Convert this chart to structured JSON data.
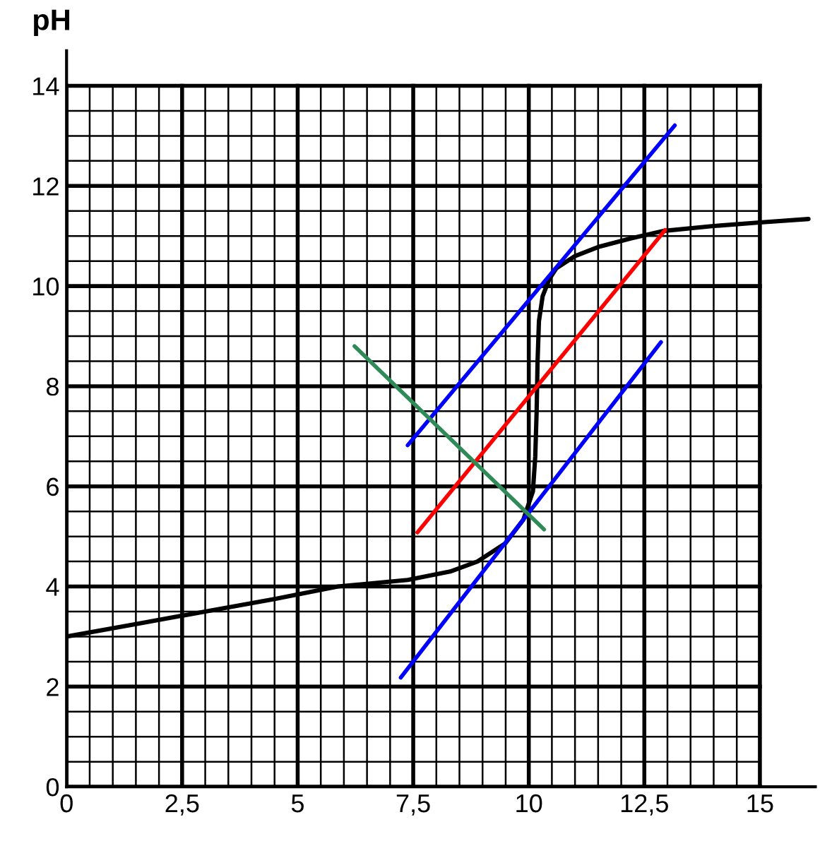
{
  "chart_data": {
    "type": "line",
    "ylabel": "pH",
    "xlim": [
      0,
      16.2
    ],
    "ylim": [
      0,
      14.7
    ],
    "xticks": [
      0,
      {
        "value": 2.5,
        "label": "2,5"
      },
      5,
      {
        "value": 7.5,
        "label": "7,5"
      },
      10,
      {
        "value": 12.5,
        "label": "12,5"
      },
      15
    ],
    "yticks": [
      0,
      2,
      4,
      6,
      8,
      10,
      12,
      14
    ],
    "grid": true,
    "marker": "none",
    "line_style": "solid",
    "series": [
      {
        "color": "#000000",
        "x": [
          0,
          1.5,
          3,
          4.5,
          5.87,
          7.38,
          8.3,
          8.89,
          9.49,
          9.88,
          10.09,
          10.14,
          10.17,
          10.19,
          10.22,
          10.3,
          10.45,
          10.6,
          11.0,
          11.5,
          12.2,
          12.9,
          14,
          15,
          16.05
        ],
        "values": [
          3.0,
          3.25,
          3.5,
          3.75,
          4.0,
          4.13,
          4.3,
          4.5,
          4.86,
          5.33,
          5.9,
          6.6,
          7.5,
          8.5,
          9.3,
          9.8,
          10.15,
          10.36,
          10.6,
          10.78,
          10.95,
          11.1,
          11.2,
          11.27,
          11.34
        ]
      },
      {
        "color": "#0000ff",
        "x": [
          7.38,
          13.16
        ],
        "values": [
          6.82,
          13.21
        ]
      },
      {
        "color": "#ff0000",
        "x": [
          7.59,
          12.95
        ],
        "values": [
          5.08,
          11.12
        ]
      },
      {
        "color": "#0000ff",
        "x": [
          7.23,
          12.86
        ],
        "values": [
          2.18,
          8.88
        ]
      },
      {
        "color": "#2e8b57",
        "x": [
          6.23,
          10.33
        ],
        "values": [
          8.8,
          5.14
        ]
      }
    ]
  }
}
